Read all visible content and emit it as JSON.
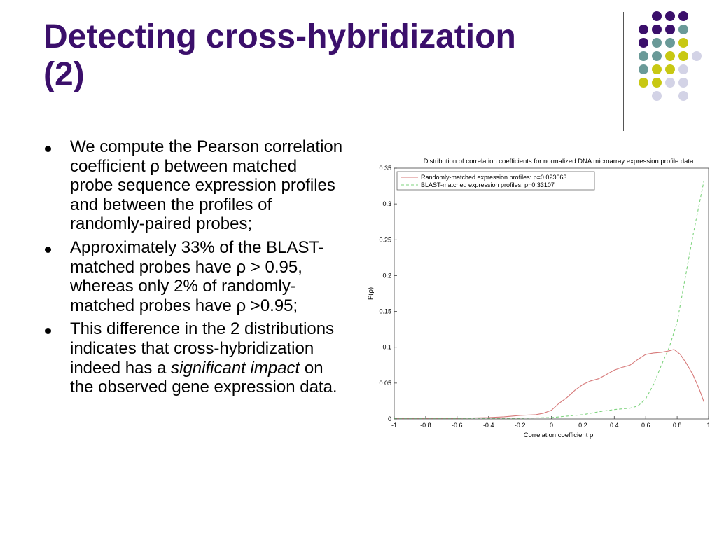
{
  "slide": {
    "title_line1": "Detecting cross-hybridization",
    "title_line2": "(2)",
    "bullets": [
      {
        "text": "We compute the Pearson correlation coefficient ρ between matched probe sequence expression profiles and between the profiles of randomly-paired probes;"
      },
      {
        "text": "Approximately 33% of the BLAST-matched probes have ρ > 0.95, whereas only 2% of randomly-matched probes have ρ >0.95;"
      },
      {
        "text_before": "This difference in the 2 distributions indicates that cross-hybridization indeed has a ",
        "text_emph": "significant impact",
        "text_after": " on the observed gene expression data."
      }
    ],
    "colors": {
      "title": "#3b0f6b",
      "dot_purple": "#3b0f6b",
      "dot_teal": "#6a9a98",
      "dot_yellow": "#c8c813",
      "dot_lavender": "#d3d3e6"
    }
  },
  "chart_data": {
    "type": "line",
    "title": "Distribution of correlation coefficients for normalized DNA microarray expression profile data",
    "xlabel": "Correlation coefficient ρ",
    "ylabel": "P(ρ)",
    "xlim": [
      -1,
      1
    ],
    "ylim": [
      0,
      0.35
    ],
    "xticks": [
      -1,
      -0.8,
      -0.6,
      -0.4,
      -0.2,
      0,
      0.2,
      0.4,
      0.6,
      0.8,
      1
    ],
    "xtick_labels": [
      "-1",
      "-0.8",
      "-0.6",
      "-0.4",
      "-0.2",
      "0",
      "0.2",
      "0.4",
      "0.6",
      "0.8",
      "1"
    ],
    "yticks": [
      0,
      0.05,
      0.1,
      0.15,
      0.2,
      0.25,
      0.3,
      0.35
    ],
    "ytick_labels": [
      "0",
      "0.05",
      "0.1",
      "0.15",
      "0.2",
      "0.25",
      "0.3",
      "0.35"
    ],
    "legend_position": "top-left",
    "series": [
      {
        "name": "Randomly-matched expression profiles: p=0.023663",
        "color": "#d77a7a",
        "dash": "solid",
        "x": [
          -1,
          -0.8,
          -0.6,
          -0.4,
          -0.3,
          -0.2,
          -0.1,
          -0.05,
          0,
          0.05,
          0.1,
          0.15,
          0.2,
          0.25,
          0.3,
          0.35,
          0.4,
          0.45,
          0.5,
          0.55,
          0.6,
          0.65,
          0.7,
          0.75,
          0.78,
          0.82,
          0.86,
          0.9,
          0.94,
          0.97
        ],
        "y": [
          0.001,
          0.001,
          0.001,
          0.002,
          0.003,
          0.005,
          0.006,
          0.008,
          0.012,
          0.022,
          0.03,
          0.04,
          0.048,
          0.053,
          0.056,
          0.062,
          0.068,
          0.072,
          0.075,
          0.083,
          0.09,
          0.092,
          0.093,
          0.095,
          0.097,
          0.09,
          0.077,
          0.062,
          0.042,
          0.024
        ]
      },
      {
        "name": "BLAST-matched expression profiles: p=0.33107",
        "color": "#7ed37e",
        "dash": "dashed",
        "x": [
          -1,
          -0.8,
          -0.6,
          -0.4,
          -0.2,
          0,
          0.1,
          0.2,
          0.3,
          0.4,
          0.5,
          0.55,
          0.6,
          0.65,
          0.7,
          0.75,
          0.8,
          0.85,
          0.9,
          0.95,
          0.97
        ],
        "y": [
          0.001,
          0.001,
          0.001,
          0.001,
          0.001,
          0.002,
          0.004,
          0.006,
          0.01,
          0.013,
          0.015,
          0.018,
          0.028,
          0.048,
          0.075,
          0.1,
          0.135,
          0.195,
          0.255,
          0.31,
          0.332
        ]
      }
    ]
  }
}
